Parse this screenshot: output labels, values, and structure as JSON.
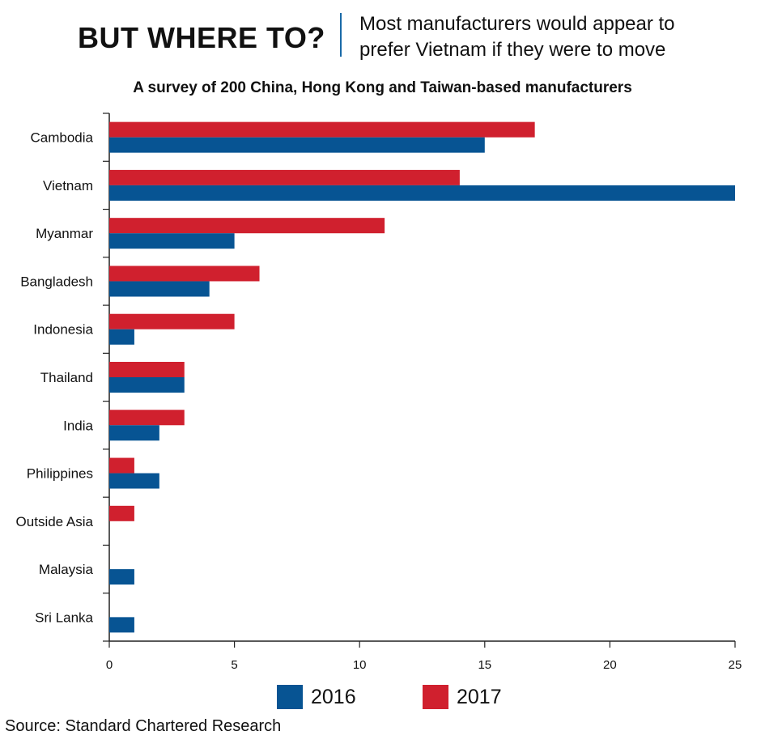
{
  "header": {
    "title": "BUT WHERE TO?",
    "subtitle_line1": "Most manufacturers would appear to",
    "subtitle_line2": "prefer Vietnam if they were to move"
  },
  "chart_data": {
    "type": "bar",
    "orientation": "horizontal",
    "title": "A survey of 200 China, Hong Kong and Taiwan-based manufacturers",
    "categories": [
      "Cambodia",
      "Vietnam",
      "Myanmar",
      "Bangladesh",
      "Indonesia",
      "Thailand",
      "India",
      "Philippines",
      "Outside Asia",
      "Malaysia",
      "Sri Lanka"
    ],
    "series": [
      {
        "name": "2017",
        "color": "#d0202e",
        "values": [
          17,
          14,
          11,
          6,
          5,
          3,
          3,
          1,
          1,
          0,
          0
        ]
      },
      {
        "name": "2016",
        "color": "#075493",
        "values": [
          15,
          25,
          5,
          4,
          1,
          3,
          2,
          2,
          0,
          1,
          1
        ]
      }
    ],
    "xlim": [
      0,
      25
    ],
    "xticks": [
      "0",
      "5",
      "10",
      "15",
      "20",
      "25"
    ],
    "xlabel": "",
    "ylabel": "",
    "grid": false,
    "legend_position": "bottom"
  },
  "legend": [
    {
      "label": "2016",
      "color": "#075493"
    },
    {
      "label": "2017",
      "color": "#d0202e"
    }
  ],
  "source": "Source: Standard Chartered Research"
}
